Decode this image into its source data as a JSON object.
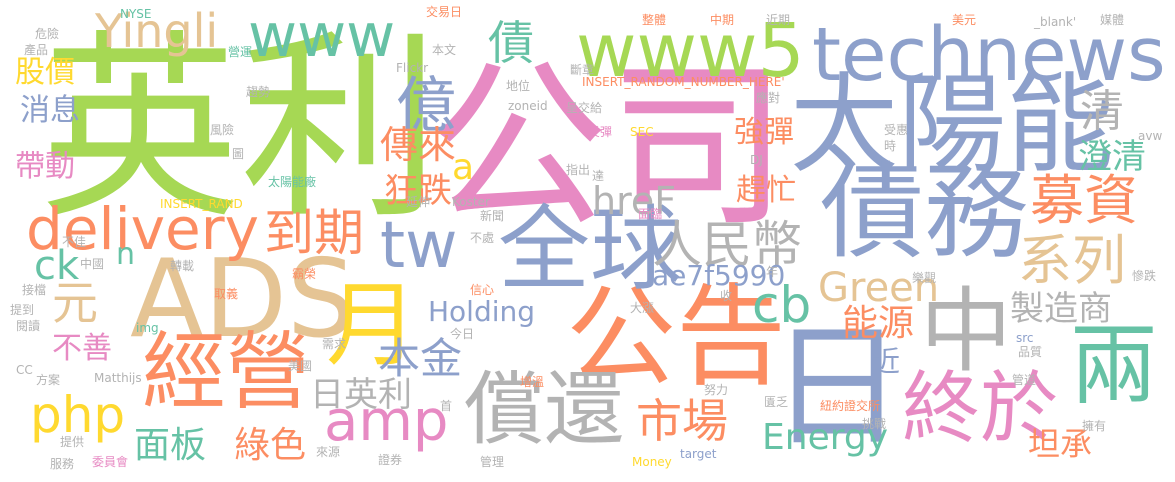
{
  "palette": {
    "green": "#a6d854",
    "pink": "#e78ac3",
    "blue": "#8da0cb",
    "orange": "#fc8d62",
    "teal": "#66c2a5",
    "yellow": "#ffd92f",
    "tan": "#e5c494",
    "gray": "#b3b3b3"
  },
  "words": [
    {
      "text": "英利",
      "color": "green"
    },
    {
      "text": "公司",
      "color": "pink"
    },
    {
      "text": "太陽能",
      "color": "blue"
    },
    {
      "text": "technews",
      "color": "blue"
    },
    {
      "text": "www5",
      "color": "green"
    },
    {
      "text": "www",
      "color": "teal"
    },
    {
      "text": "債務",
      "color": "blue"
    },
    {
      "text": "ADS",
      "color": "tan"
    },
    {
      "text": "公告",
      "color": "orange"
    },
    {
      "text": "日",
      "color": "blue"
    },
    {
      "text": "中",
      "color": "gray"
    },
    {
      "text": "全球",
      "color": "blue"
    },
    {
      "text": "月",
      "color": "yellow"
    },
    {
      "text": "經營",
      "color": "orange"
    },
    {
      "text": "償還",
      "color": "gray"
    },
    {
      "text": "終於",
      "color": "pink"
    },
    {
      "text": "兩",
      "color": "teal"
    },
    {
      "text": "delivery",
      "color": "orange"
    },
    {
      "text": "tw",
      "color": "blue"
    },
    {
      "text": "到期",
      "color": "orange"
    },
    {
      "text": "人民幣",
      "color": "gray"
    },
    {
      "text": "募資",
      "color": "orange"
    },
    {
      "text": "系列",
      "color": "tan"
    },
    {
      "text": "億",
      "color": "blue"
    },
    {
      "text": "債",
      "color": "teal"
    },
    {
      "text": "Yingli",
      "color": "tan"
    },
    {
      "text": "股價",
      "color": "yellow"
    },
    {
      "text": "消息",
      "color": "blue"
    },
    {
      "text": "帶動",
      "color": "pink"
    },
    {
      "text": "傳來",
      "color": "orange"
    },
    {
      "text": "狂跌",
      "color": "orange"
    },
    {
      "text": "a",
      "color": "yellow"
    },
    {
      "text": "強彈",
      "color": "orange"
    },
    {
      "text": "趕忙",
      "color": "orange"
    },
    {
      "text": "hreF",
      "color": "gray"
    },
    {
      "text": "清",
      "color": "gray"
    },
    {
      "text": "澄清",
      "color": "teal"
    },
    {
      "text": "cb",
      "color": "teal"
    },
    {
      "text": "Green",
      "color": "tan"
    },
    {
      "text": "ae7f5990",
      "color": "blue"
    },
    {
      "text": "Holding",
      "color": "blue"
    },
    {
      "text": "能源",
      "color": "orange"
    },
    {
      "text": "製造商",
      "color": "gray"
    },
    {
      "text": "本金",
      "color": "blue"
    },
    {
      "text": "日英利",
      "color": "gray"
    },
    {
      "text": "amp",
      "color": "pink"
    },
    {
      "text": "市場",
      "color": "orange"
    },
    {
      "text": "Energy",
      "color": "teal"
    },
    {
      "text": "面板",
      "color": "teal"
    },
    {
      "text": "綠色",
      "color": "orange"
    },
    {
      "text": "php",
      "color": "yellow"
    },
    {
      "text": "元",
      "color": "tan"
    },
    {
      "text": "不善",
      "color": "pink"
    },
    {
      "text": "ck",
      "color": "teal"
    },
    {
      "text": "n",
      "color": "teal"
    },
    {
      "text": "近",
      "color": "blue"
    },
    {
      "text": "坦承",
      "color": "orange"
    },
    {
      "text": "NYSE",
      "color": "teal"
    },
    {
      "text": "危險",
      "color": "gray"
    },
    {
      "text": "產品",
      "color": "gray"
    },
    {
      "text": "交易日",
      "color": "orange"
    },
    {
      "text": "整體",
      "color": "orange"
    },
    {
      "text": "中期",
      "color": "orange"
    },
    {
      "text": "近期",
      "color": "gray"
    },
    {
      "text": "美元",
      "color": "orange"
    },
    {
      "text": "_blank'",
      "color": "gray"
    },
    {
      "text": "媒體",
      "color": "gray"
    },
    {
      "text": "營運",
      "color": "teal"
    },
    {
      "text": "本文",
      "color": "gray"
    },
    {
      "text": "Flickr",
      "color": "gray"
    },
    {
      "text": "斷章",
      "color": "gray"
    },
    {
      "text": "INSERT_RANDOM_NUMBER_HERE'",
      "color": "orange"
    },
    {
      "text": "地位",
      "color": "gray"
    },
    {
      "text": "趨勢",
      "color": "gray"
    },
    {
      "text": "zoneid",
      "color": "gray"
    },
    {
      "text": "呈交給",
      "color": "gray"
    },
    {
      "text": "應對",
      "color": "gray"
    },
    {
      "text": "風險",
      "color": "gray"
    },
    {
      "text": "反彈",
      "color": "pink"
    },
    {
      "text": "SEC",
      "color": "yellow"
    },
    {
      "text": "受惠",
      "color": "gray"
    },
    {
      "text": "指出",
      "color": "gray"
    },
    {
      "text": "DJ",
      "color": "gray"
    },
    {
      "text": "太陽能廠",
      "color": "teal"
    },
    {
      "text": "INSERT_RAND",
      "color": "yellow"
    },
    {
      "text": "延伸",
      "color": "gray"
    },
    {
      "text": "Koster",
      "color": "gray"
    },
    {
      "text": "新聞",
      "color": "gray"
    },
    {
      "text": "面臨",
      "color": "pink"
    },
    {
      "text": "不佳",
      "color": "gray"
    },
    {
      "text": "中國",
      "color": "gray"
    },
    {
      "text": "不處",
      "color": "gray"
    },
    {
      "text": "轉載",
      "color": "gray"
    },
    {
      "text": "霸榮",
      "color": "orange"
    },
    {
      "text": "接檔",
      "color": "gray"
    },
    {
      "text": "取義",
      "color": "orange"
    },
    {
      "text": "信心",
      "color": "orange"
    },
    {
      "text": "大漲",
      "color": "gray"
    },
    {
      "text": "收",
      "color": "gray"
    },
    {
      "text": "年",
      "color": "gray"
    },
    {
      "text": "樂觀",
      "color": "gray"
    },
    {
      "text": "慘跌",
      "color": "gray"
    },
    {
      "text": "提到",
      "color": "gray"
    },
    {
      "text": "閱讀",
      "color": "gray"
    },
    {
      "text": "img",
      "color": "teal"
    },
    {
      "text": "需求",
      "color": "gray"
    },
    {
      "text": "今日",
      "color": "gray"
    },
    {
      "text": "src",
      "color": "blue"
    },
    {
      "text": "品質",
      "color": "gray"
    },
    {
      "text": "美國",
      "color": "gray"
    },
    {
      "text": "CC",
      "color": "gray"
    },
    {
      "text": "方案",
      "color": "gray"
    },
    {
      "text": "Matthijs",
      "color": "gray"
    },
    {
      "text": "增溫",
      "color": "orange"
    },
    {
      "text": "努力",
      "color": "gray"
    },
    {
      "text": "管道",
      "color": "gray"
    },
    {
      "text": "首",
      "color": "gray"
    },
    {
      "text": "匱乏",
      "color": "gray"
    },
    {
      "text": "紐約證交所",
      "color": "orange"
    },
    {
      "text": "挑戰",
      "color": "gray"
    },
    {
      "text": "提供",
      "color": "gray"
    },
    {
      "text": "擁有",
      "color": "gray"
    },
    {
      "text": "服務",
      "color": "gray"
    },
    {
      "text": "委員會",
      "color": "pink"
    },
    {
      "text": "來源",
      "color": "gray"
    },
    {
      "text": "證券",
      "color": "gray"
    },
    {
      "text": "管理",
      "color": "gray"
    },
    {
      "text": "Money",
      "color": "yellow"
    },
    {
      "text": "target",
      "color": "blue"
    },
    {
      "text": "avw",
      "color": "gray"
    },
    {
      "text": "時",
      "color": "gray"
    },
    {
      "text": "達",
      "color": "gray"
    },
    {
      "text": "圖",
      "color": "gray"
    }
  ]
}
